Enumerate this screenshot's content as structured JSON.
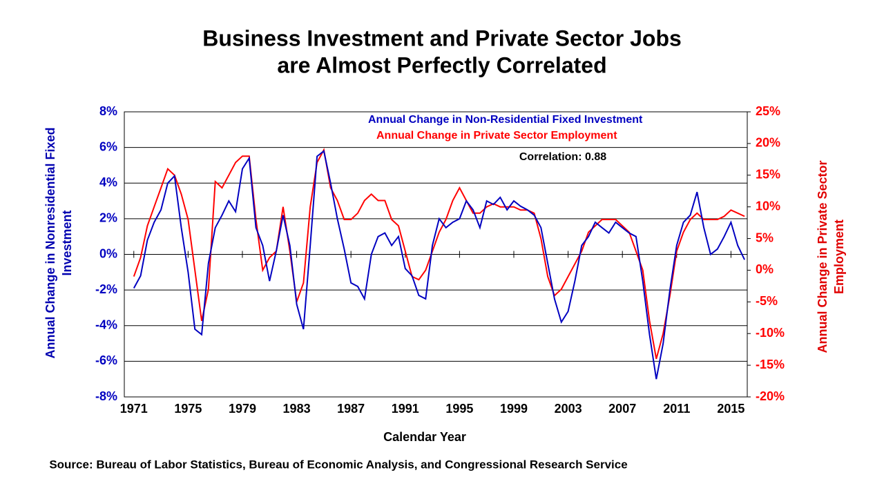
{
  "chart_data": {
    "type": "line",
    "title": [
      "Business Investment and Private Sector Jobs",
      "are Almost Perfectly Correlated"
    ],
    "xlabel": "Calendar Year",
    "ylabel": [
      "Annual Change in Nonresidential Fixed",
      "Investment"
    ],
    "y2label": [
      "Annual Change in Private Sector",
      "Employment"
    ],
    "annotation": "Correlation: 0.88",
    "source": "Source: Bureau of Labor Statistics, Bureau of Economic Analysis, and Congressional Research Service",
    "grid": true,
    "legend": "top-center",
    "xlim": [
      1970.3,
      2016.2
    ],
    "xticks": [
      1971,
      1975,
      1979,
      1983,
      1987,
      1991,
      1995,
      1999,
      2003,
      2007,
      2011,
      2015
    ],
    "ylim": [
      -8,
      8
    ],
    "yticks": [
      {
        "value": -8,
        "label": "-8%"
      },
      {
        "value": -6,
        "label": "-6%"
      },
      {
        "value": -4,
        "label": "-4%"
      },
      {
        "value": -2,
        "label": "-2%"
      },
      {
        "value": 0,
        "label": "0%"
      },
      {
        "value": 2,
        "label": "2%"
      },
      {
        "value": 4,
        "label": "4%"
      },
      {
        "value": 6,
        "label": "6%"
      },
      {
        "value": 8,
        "label": "8%"
      }
    ],
    "y2lim": [
      -20,
      25
    ],
    "y2ticks": [
      {
        "value": -20,
        "label": "-20%"
      },
      {
        "value": -15,
        "label": "-15%"
      },
      {
        "value": -10,
        "label": "-10%"
      },
      {
        "value": -5,
        "label": "-5%"
      },
      {
        "value": 0,
        "label": "0%"
      },
      {
        "value": 5,
        "label": "5%"
      },
      {
        "value": 10,
        "label": "10%"
      },
      {
        "value": 15,
        "label": "15%"
      },
      {
        "value": 20,
        "label": "20%"
      },
      {
        "value": 25,
        "label": "25%"
      }
    ],
    "x": [
      1971.0,
      1971.5,
      1972.0,
      1972.5,
      1973.0,
      1973.5,
      1974.0,
      1974.5,
      1975.0,
      1975.5,
      1976.0,
      1976.5,
      1977.0,
      1977.5,
      1978.0,
      1978.5,
      1979.0,
      1979.5,
      1980.0,
      1980.5,
      1981.0,
      1981.5,
      1982.0,
      1982.5,
      1983.0,
      1983.5,
      1984.0,
      1984.5,
      1985.0,
      1985.5,
      1986.0,
      1986.5,
      1987.0,
      1987.5,
      1988.0,
      1988.5,
      1989.0,
      1989.5,
      1990.0,
      1990.5,
      1991.0,
      1991.5,
      1992.0,
      1992.5,
      1993.0,
      1993.5,
      1994.0,
      1994.5,
      1995.0,
      1995.5,
      1996.0,
      1996.5,
      1997.0,
      1997.5,
      1998.0,
      1998.5,
      1999.0,
      1999.5,
      2000.0,
      2000.5,
      2001.0,
      2001.5,
      2002.0,
      2002.5,
      2003.0,
      2003.5,
      2004.0,
      2004.5,
      2005.0,
      2005.5,
      2006.0,
      2006.5,
      2007.0,
      2007.5,
      2008.0,
      2008.5,
      2009.0,
      2009.5,
      2010.0,
      2010.5,
      2011.0,
      2011.5,
      2012.0,
      2012.5,
      2013.0,
      2013.5,
      2014.0,
      2014.5,
      2015.0,
      2015.5,
      2016.0
    ],
    "series": [
      {
        "name": "Annual Change in Non-Residential Fixed Investment",
        "color": "#0000c0",
        "axis": "y",
        "values": [
          -1.9,
          -1.2,
          0.8,
          1.8,
          2.5,
          4.0,
          4.4,
          1.5,
          -1.0,
          -4.2,
          -4.5,
          -0.5,
          1.5,
          2.2,
          3.0,
          2.4,
          4.8,
          5.4,
          1.5,
          0.5,
          -1.5,
          0.2,
          2.2,
          0.5,
          -2.8,
          -4.2,
          0.5,
          5.5,
          5.8,
          4.0,
          2.0,
          0.3,
          -1.6,
          -1.8,
          -2.5,
          0.0,
          1.0,
          1.2,
          0.5,
          1.0,
          -0.8,
          -1.2,
          -2.3,
          -2.5,
          0.5,
          2.0,
          1.5,
          1.8,
          2.0,
          3.0,
          2.5,
          1.5,
          3.0,
          2.8,
          3.2,
          2.5,
          3.0,
          2.7,
          2.5,
          2.2,
          1.5,
          -0.5,
          -2.5,
          -3.8,
          -3.2,
          -1.5,
          0.5,
          1.0,
          1.8,
          1.5,
          1.2,
          1.8,
          1.5,
          1.2,
          1.0,
          -1.5,
          -4.5,
          -7.0,
          -5.0,
          -2.0,
          0.5,
          1.8,
          2.2,
          3.5,
          1.5,
          0.0,
          0.3,
          1.0,
          1.8,
          0.5,
          -0.3
        ]
      },
      {
        "name": "Annual Change in Private Sector Employment",
        "color": "#ff0000",
        "axis": "y2",
        "values": [
          -1,
          2,
          7,
          10,
          13,
          16,
          15,
          12,
          8,
          0,
          -8,
          -3,
          14,
          13,
          15,
          17,
          18,
          18,
          8,
          0,
          2,
          3,
          10,
          3,
          -5,
          -2,
          10,
          17,
          19,
          13,
          11,
          8,
          8,
          9,
          11,
          12,
          11,
          11,
          8,
          7,
          3,
          -1,
          -1.5,
          0,
          3,
          6,
          8,
          11,
          13,
          11,
          9,
          9,
          10,
          10.5,
          10,
          10,
          10,
          9.5,
          9.5,
          9,
          5,
          -1,
          -4,
          -3,
          -1,
          1,
          3,
          6,
          7,
          8,
          8,
          8,
          7,
          6,
          3,
          0,
          -8,
          -14,
          -10,
          -4,
          3,
          6,
          8,
          9,
          8,
          8,
          8,
          8.5,
          9.5,
          9,
          8.5
        ]
      }
    ]
  }
}
